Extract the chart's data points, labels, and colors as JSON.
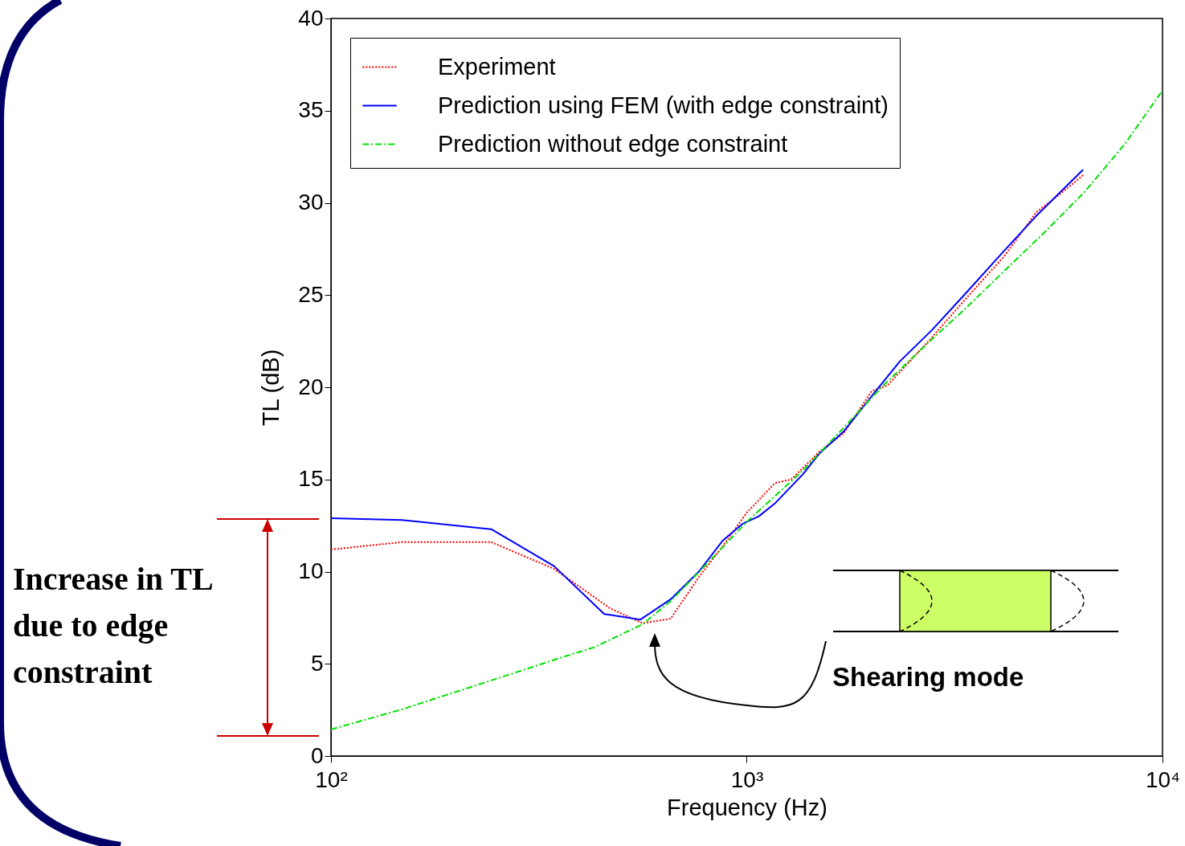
{
  "chart_data": {
    "type": "line",
    "xlabel": "Frequency (Hz)",
    "ylabel": "TL (dB)",
    "log": "x",
    "xlim": [
      100,
      10000
    ],
    "xticks": [
      {
        "value": 100,
        "label": "10²"
      },
      {
        "value": 1000,
        "label": "10³"
      },
      {
        "value": 10000,
        "label": "10⁴"
      }
    ],
    "ylim": [
      0,
      40
    ],
    "yticks": [
      0,
      5,
      10,
      15,
      20,
      25,
      30,
      35,
      40
    ],
    "grid": false,
    "legend": "top left",
    "marker": "none",
    "series": [
      {
        "name": "Experiment",
        "color": "#ff0000",
        "line_style": "dotted",
        "x": [
          100,
          148,
          243,
          344,
          470,
          562,
          656,
          767,
          877,
          1000,
          1169,
          1278,
          1495,
          1710,
          2000,
          2180,
          2788,
          3333,
          4160,
          4975,
          5687,
          6442
        ],
        "values": [
          11.2,
          11.6,
          11.6,
          10.15,
          8.0,
          7.2,
          7.45,
          9.7,
          11.4,
          13.2,
          14.8,
          15.0,
          16.5,
          17.5,
          19.8,
          20.1,
          22.7,
          24.7,
          27.1,
          29.5,
          30.5,
          31.5
        ]
      },
      {
        "name": "Prediction using FEM (with edge constraint)",
        "color": "#0000ff",
        "line_style": "solid",
        "x": [
          100,
          148,
          243,
          344,
          454,
          555,
          656,
          767,
          877,
          978,
          1069,
          1169,
          1367,
          1495,
          1710,
          2044,
          2334,
          2788,
          3333,
          4160,
          4975,
          5687,
          6442
        ],
        "values": [
          12.9,
          12.8,
          12.3,
          10.3,
          7.7,
          7.4,
          8.5,
          10.0,
          11.7,
          12.6,
          13.0,
          13.7,
          15.3,
          16.4,
          17.6,
          19.8,
          21.4,
          23.1,
          25.0,
          27.4,
          29.3,
          30.6,
          31.8
        ]
      },
      {
        "name": "Prediction without edge constraint",
        "color": "#00e000",
        "line_style": "dashed",
        "x": [
          100,
          148,
          243,
          360,
          430,
          562,
          656,
          800,
          1000,
          1367,
          1710,
          2130,
          2788,
          3333,
          4160,
          5200,
          6500,
          8120,
          10000
        ],
        "values": [
          1.44,
          2.53,
          4.1,
          5.36,
          5.9,
          7.15,
          8.4,
          10.4,
          12.7,
          15.5,
          17.8,
          20.1,
          22.6,
          24.2,
          26.3,
          28.4,
          30.6,
          33.2,
          36.1
        ]
      }
    ],
    "annotations": [
      "Increase in TL due to edge constraint",
      "Shearing mode"
    ]
  }
}
